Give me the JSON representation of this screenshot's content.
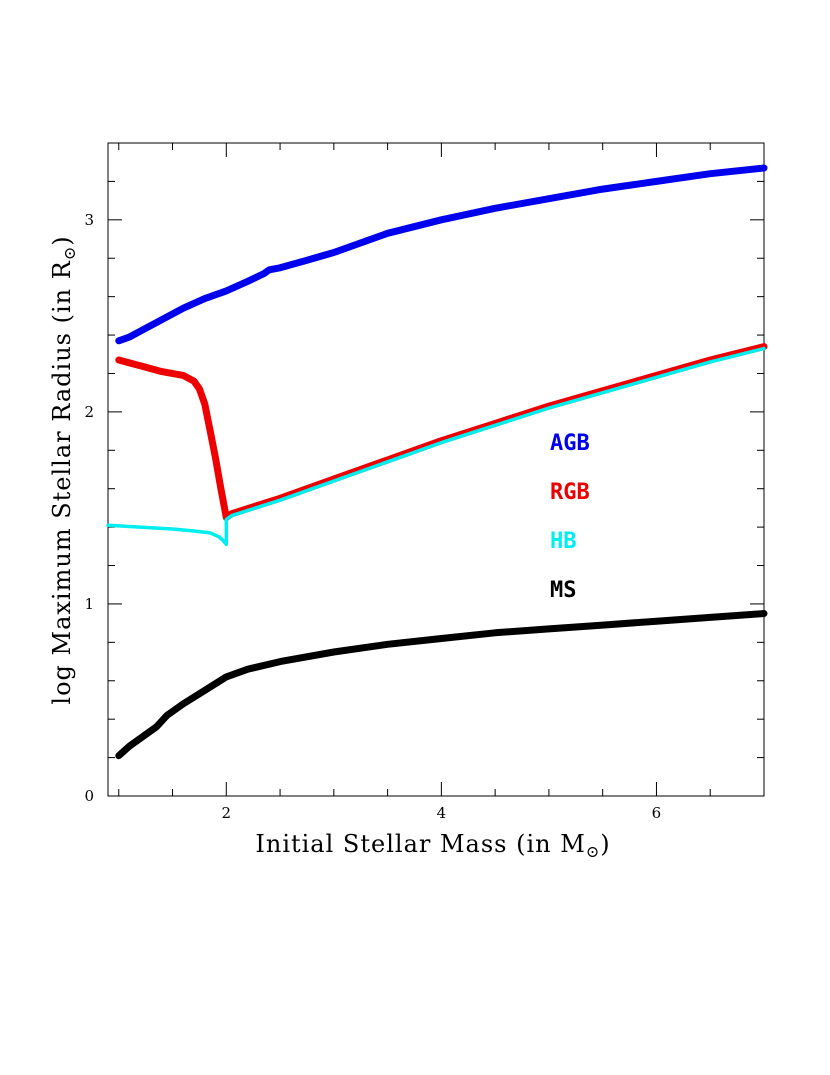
{
  "chart_data": {
    "type": "line",
    "xlabel": "Initial Stellar Mass (in M",
    "xlabel_sub": "⊙",
    "xlabel_close": ")",
    "ylabel": "log Maximum Stellar Radius (in R",
    "ylabel_sub": "⊙",
    "ylabel_close": ")",
    "xlim": [
      0.9,
      7.0
    ],
    "ylim": [
      0,
      3.4
    ],
    "x_ticks": [
      2,
      4,
      6
    ],
    "x_tick_labels": [
      "2",
      "4",
      "6"
    ],
    "y_ticks": [
      0,
      1,
      2,
      3
    ],
    "y_tick_labels": [
      "0",
      "1",
      "2",
      "3"
    ],
    "grid": false,
    "legend_placement": "right-center",
    "series": [
      {
        "name": "AGB",
        "color": "#0000ee",
        "x": [
          1.0,
          1.1,
          1.2,
          1.4,
          1.6,
          1.8,
          2.0,
          2.2,
          2.35,
          2.4,
          2.5,
          2.75,
          3.0,
          3.5,
          4.0,
          4.5,
          5.0,
          5.5,
          6.0,
          6.5,
          7.0
        ],
        "y": [
          2.37,
          2.39,
          2.42,
          2.48,
          2.54,
          2.59,
          2.63,
          2.68,
          2.72,
          2.74,
          2.75,
          2.79,
          2.83,
          2.93,
          3.0,
          3.06,
          3.11,
          3.16,
          3.2,
          3.24,
          3.27
        ]
      },
      {
        "name": "RGB",
        "color": "#ee0000",
        "x": [
          1.0,
          1.2,
          1.4,
          1.6,
          1.7,
          1.75,
          1.8,
          1.85,
          1.9,
          1.95,
          2.0,
          2.05,
          2.5,
          3.0,
          3.5,
          4.0,
          4.5,
          5.0,
          5.5,
          6.0,
          6.5,
          7.0
        ],
        "y": [
          2.27,
          2.24,
          2.21,
          2.19,
          2.16,
          2.12,
          2.04,
          1.9,
          1.76,
          1.6,
          1.45,
          1.47,
          1.55,
          1.65,
          1.75,
          1.85,
          1.94,
          2.03,
          2.11,
          2.19,
          2.27,
          2.34
        ]
      },
      {
        "name": "HB",
        "color": "#00eeee",
        "x": [
          0.9,
          1.2,
          1.5,
          1.7,
          1.85,
          1.93,
          1.97,
          2.0,
          2.0,
          2.05,
          2.5,
          3.0,
          3.5,
          4.0,
          4.5,
          5.0,
          5.5,
          6.0,
          6.5,
          7.0
        ],
        "y": [
          1.41,
          1.4,
          1.39,
          1.38,
          1.37,
          1.35,
          1.33,
          1.31,
          1.44,
          1.46,
          1.54,
          1.64,
          1.74,
          1.84,
          1.93,
          2.02,
          2.1,
          2.18,
          2.26,
          2.33
        ]
      },
      {
        "name": "MS",
        "color": "#000000",
        "x": [
          1.0,
          1.1,
          1.2,
          1.35,
          1.45,
          1.6,
          1.8,
          2.0,
          2.2,
          2.5,
          3.0,
          3.5,
          4.0,
          4.5,
          5.0,
          5.5,
          6.0,
          6.5,
          7.0
        ],
        "y": [
          0.21,
          0.26,
          0.3,
          0.36,
          0.42,
          0.48,
          0.55,
          0.62,
          0.66,
          0.7,
          0.75,
          0.79,
          0.82,
          0.85,
          0.87,
          0.89,
          0.91,
          0.93,
          0.95
        ]
      }
    ],
    "legend": [
      {
        "label": "AGB",
        "color": "#0000ee"
      },
      {
        "label": "RGB",
        "color": "#ee0000"
      },
      {
        "label": "HB",
        "color": "#00eeee"
      },
      {
        "label": "MS",
        "color": "#000000"
      }
    ]
  }
}
